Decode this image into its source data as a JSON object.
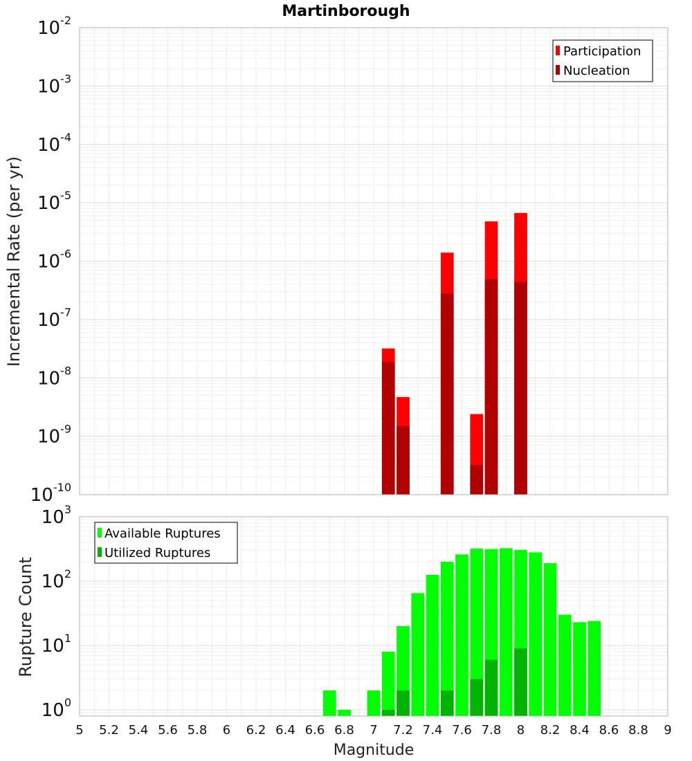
{
  "figure": {
    "title": "Martinborough",
    "xlabel": "Magnitude",
    "x_ticks": [
      "5",
      "5.2",
      "5.4",
      "5.6",
      "5.8",
      "6",
      "6.2",
      "6.4",
      "6.6",
      "6.8",
      "7",
      "7.2",
      "7.4",
      "7.6",
      "7.8",
      "8",
      "8.2",
      "8.4",
      "8.6",
      "8.8",
      "9"
    ]
  },
  "chart_data": [
    {
      "type": "bar",
      "ylabel": "Incremental Rate (per yr)",
      "y_scale": "log",
      "xlim": [
        5,
        9
      ],
      "ylim": [
        1e-10,
        0.01
      ],
      "y_ticks": [
        {
          "base": "10",
          "exp": "-2"
        },
        {
          "base": "10",
          "exp": "-3"
        },
        {
          "base": "10",
          "exp": "-4"
        },
        {
          "base": "10",
          "exp": "-5"
        },
        {
          "base": "10",
          "exp": "-6"
        },
        {
          "base": "10",
          "exp": "-7"
        },
        {
          "base": "10",
          "exp": "-8"
        },
        {
          "base": "10",
          "exp": "-9"
        },
        {
          "base": "10",
          "exp": "-10"
        }
      ],
      "grid": true,
      "legend_position": "top-right",
      "series": [
        {
          "name": "Participation",
          "color": "#ff0000",
          "x": [
            7.1,
            7.2,
            7.5,
            7.7,
            7.8,
            8.0
          ],
          "values": [
            3.2e-08,
            4.7e-09,
            1.4e-06,
            2.4e-09,
            4.8e-06,
            6.7e-06
          ]
        },
        {
          "name": "Nucleation",
          "color": "#b00000",
          "x": [
            7.1,
            7.2,
            7.5,
            7.7,
            7.8,
            8.0
          ],
          "values": [
            1.9e-08,
            1.5e-09,
            2.8e-07,
            3.2e-10,
            4.9e-07,
            4.4e-07
          ]
        }
      ]
    },
    {
      "type": "bar",
      "ylabel": "Rupture Count",
      "y_scale": "log",
      "xlim": [
        5,
        9
      ],
      "ylim": [
        0.8,
        1000
      ],
      "y_ticks": [
        {
          "base": "10",
          "exp": "3"
        },
        {
          "base": "10",
          "exp": "2"
        },
        {
          "base": "10",
          "exp": "1"
        },
        {
          "base": "10",
          "exp": "0"
        }
      ],
      "grid": true,
      "legend_position": "top-left",
      "series": [
        {
          "name": "Available Ruptures",
          "color": "#00ff00",
          "x": [
            6.7,
            6.8,
            7.0,
            7.1,
            7.2,
            7.3,
            7.4,
            7.5,
            7.6,
            7.7,
            7.8,
            7.9,
            8.0,
            8.1,
            8.2,
            8.3,
            8.4,
            8.5
          ],
          "values": [
            2,
            1,
            2,
            8,
            20,
            65,
            125,
            200,
            260,
            320,
            315,
            325,
            305,
            280,
            190,
            30,
            23,
            24
          ]
        },
        {
          "name": "Utilized Ruptures",
          "color": "#00b300",
          "x": [
            7.1,
            7.2,
            7.5,
            7.7,
            7.8,
            8.0
          ],
          "values": [
            1,
            2,
            2,
            3,
            6,
            9
          ]
        }
      ]
    }
  ]
}
